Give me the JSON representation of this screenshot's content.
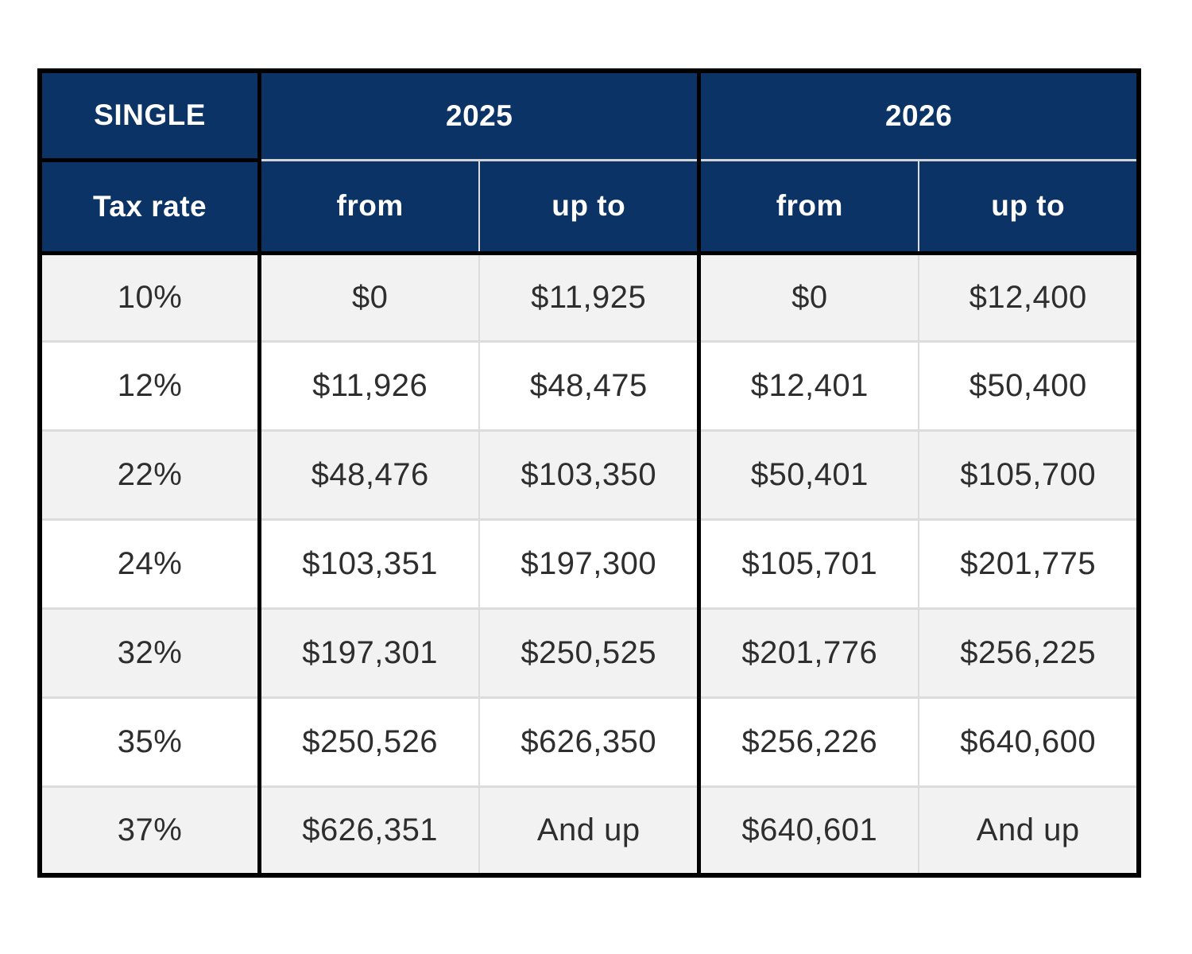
{
  "header": {
    "title": "SINGLE",
    "years": [
      "2025",
      "2026"
    ],
    "tax_rate_label": "Tax rate",
    "from_label": "from",
    "upto_label": "up to"
  },
  "rows": [
    {
      "rate": "10%",
      "from2025": "$0",
      "upto2025": "$11,925",
      "from2026": "$0",
      "upto2026": "$12,400"
    },
    {
      "rate": "12%",
      "from2025": "$11,926",
      "upto2025": "$48,475",
      "from2026": "$12,401",
      "upto2026": "$50,400"
    },
    {
      "rate": "22%",
      "from2025": "$48,476",
      "upto2025": "$103,350",
      "from2026": "$50,401",
      "upto2026": "$105,700"
    },
    {
      "rate": "24%",
      "from2025": "$103,351",
      "upto2025": "$197,300",
      "from2026": "$105,701",
      "upto2026": "$201,775"
    },
    {
      "rate": "32%",
      "from2025": "$197,301",
      "upto2025": "$250,525",
      "from2026": "$201,776",
      "upto2026": "$256,225"
    },
    {
      "rate": "35%",
      "from2025": "$250,526",
      "upto2025": "$626,350",
      "from2026": "$256,226",
      "upto2026": "$640,600"
    },
    {
      "rate": "37%",
      "from2025": "$626,351",
      "upto2025": "And up",
      "from2026": "$640,601",
      "upto2026": "And up"
    }
  ],
  "colors": {
    "header_bg": "#0c3365",
    "header_text": "#ffffff",
    "row_alt_bg": "#f2f2f2",
    "row_bg": "#ffffff",
    "body_text": "#2e2e2e",
    "grid_black": "#000000",
    "grid_light": "#dcdcdc"
  },
  "chart_data": {
    "type": "table",
    "title": "SINGLE",
    "columns": [
      "Tax rate",
      "2025 from",
      "2025 up to",
      "2026 from",
      "2026 up to"
    ],
    "rows": [
      [
        "10%",
        "$0",
        "$11,925",
        "$0",
        "$12,400"
      ],
      [
        "12%",
        "$11,926",
        "$48,475",
        "$12,401",
        "$50,400"
      ],
      [
        "22%",
        "$48,476",
        "$103,350",
        "$50,401",
        "$105,700"
      ],
      [
        "24%",
        "$103,351",
        "$197,300",
        "$105,701",
        "$201,775"
      ],
      [
        "32%",
        "$197,301",
        "$250,525",
        "$201,776",
        "$256,225"
      ],
      [
        "35%",
        "$250,526",
        "$626,350",
        "$256,226",
        "$640,600"
      ],
      [
        "37%",
        "$626,351",
        "And up",
        "$640,601",
        "And up"
      ]
    ]
  }
}
